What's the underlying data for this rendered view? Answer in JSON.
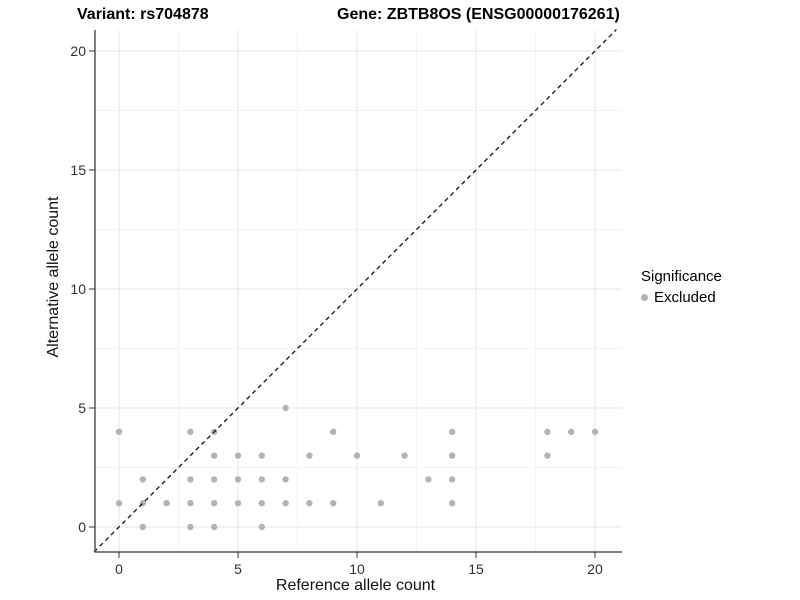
{
  "header": {
    "title_variant": "Variant: rs704878",
    "title_gene": "Gene: ZBTB8OS (ENSG00000176261)"
  },
  "legend": {
    "title": "Significance",
    "items": [
      {
        "label": "Excluded",
        "color": "#b3b3b3"
      }
    ]
  },
  "colors": {
    "point": "#b3b3b3",
    "axis_line": "#555555",
    "tick_text": "#303030",
    "grid_major": "#e6e6e6",
    "grid_minor": "#f2f2f2",
    "identity_line": "#111111"
  },
  "chart_data": {
    "type": "scatter",
    "title_left": "Variant: rs704878",
    "title_right": "Gene: ZBTB8OS (ENSG00000176261)",
    "xlabel": "Reference allele count",
    "ylabel": "Alternative allele count",
    "xlim": [
      -1.0,
      21.1
    ],
    "ylim": [
      -1.05,
      20.9
    ],
    "xticks": [
      0,
      5,
      10,
      15,
      20
    ],
    "yticks": [
      0,
      5,
      10,
      15,
      20
    ],
    "grid": true,
    "minor_grid_step": 2.5,
    "legend_position": "right",
    "identity_line": {
      "type": "abline",
      "slope": 1,
      "intercept": 0,
      "style": "dashed"
    },
    "series": [
      {
        "name": "Excluded",
        "color": "#b3b3b3",
        "points": [
          [
            0,
            1
          ],
          [
            0,
            4
          ],
          [
            1,
            0
          ],
          [
            1,
            1
          ],
          [
            1,
            2
          ],
          [
            2,
            1
          ],
          [
            3,
            0
          ],
          [
            3,
            1
          ],
          [
            3,
            2
          ],
          [
            3,
            4
          ],
          [
            4,
            0
          ],
          [
            4,
            1
          ],
          [
            4,
            2
          ],
          [
            4,
            3
          ],
          [
            4,
            4
          ],
          [
            5,
            1
          ],
          [
            5,
            2
          ],
          [
            5,
            3
          ],
          [
            6,
            0
          ],
          [
            6,
            1
          ],
          [
            6,
            2
          ],
          [
            6,
            3
          ],
          [
            7,
            1
          ],
          [
            7,
            2
          ],
          [
            7,
            5
          ],
          [
            8,
            1
          ],
          [
            8,
            3
          ],
          [
            9,
            1
          ],
          [
            9,
            4
          ],
          [
            10,
            3
          ],
          [
            11,
            1
          ],
          [
            12,
            3
          ],
          [
            13,
            2
          ],
          [
            14,
            1
          ],
          [
            14,
            2
          ],
          [
            14,
            3
          ],
          [
            14,
            4
          ],
          [
            18,
            3
          ],
          [
            18,
            4
          ],
          [
            19,
            4
          ],
          [
            20,
            4
          ]
        ]
      }
    ]
  }
}
